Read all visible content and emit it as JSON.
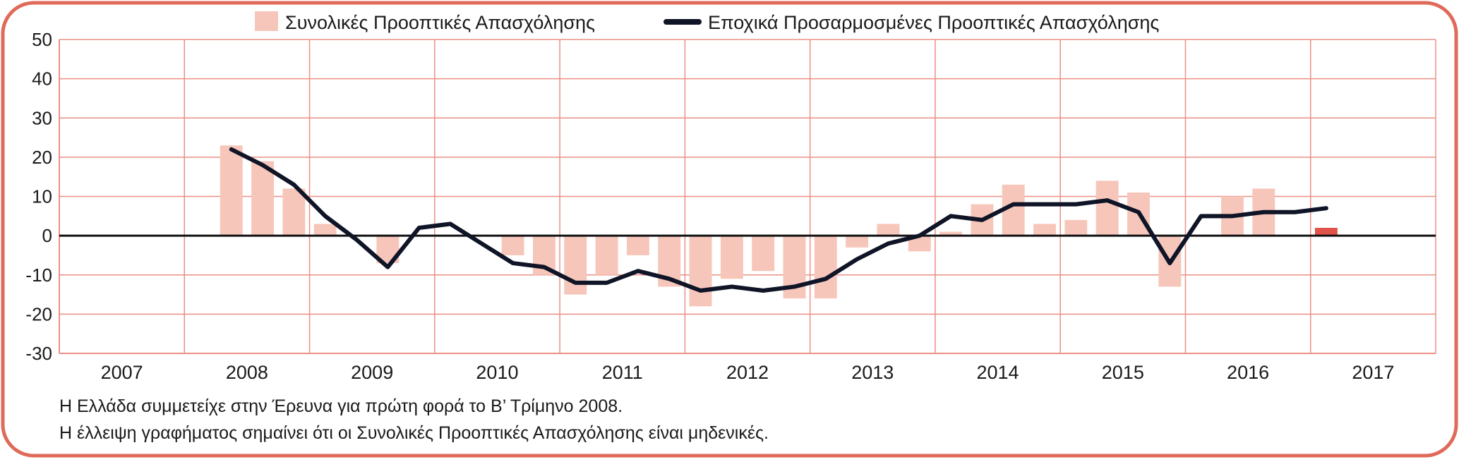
{
  "legend": {
    "bar_label": "Συνολικές Προοπτικές Απασχόλησης",
    "line_label": "Εποχικά Προσαρμοσμένες Προοπτικές Απασχόλησης"
  },
  "notes": [
    "Η Ελλάδα συμμετείχε στην Έρευνα για πρώτη φορά το Β’ Τρίμηνο 2008.",
    "Η έλλειψη γραφήματος σημαίνει ότι οι Συνολικές Προοπτικές Απασχόλησης είναι μηδενικές."
  ],
  "colors": {
    "frame": "#e06a5a",
    "grid": "#eb8f85",
    "bar": "#f7c6bb",
    "bar_latest": "#e0524a",
    "line": "#0f1426",
    "zero_line": "#111111"
  },
  "chart_data": {
    "type": "bar",
    "years": [
      "2007",
      "2008",
      "2009",
      "2010",
      "2011",
      "2012",
      "2013",
      "2014",
      "2015",
      "2016",
      "2017"
    ],
    "ylim": [
      -30,
      50
    ],
    "yticks": [
      50,
      40,
      30,
      20,
      10,
      0,
      -10,
      -20,
      -30
    ],
    "grid": true,
    "legend_position": "top",
    "quarters": [
      "2008 Q2",
      "2008 Q3",
      "2008 Q4",
      "2009 Q1",
      "2009 Q2",
      "2009 Q3",
      "2009 Q4",
      "2010 Q1",
      "2010 Q2",
      "2010 Q3",
      "2010 Q4",
      "2011 Q1",
      "2011 Q2",
      "2011 Q3",
      "2011 Q4",
      "2012 Q1",
      "2012 Q2",
      "2012 Q3",
      "2012 Q4",
      "2013 Q1",
      "2013 Q2",
      "2013 Q3",
      "2013 Q4",
      "2014 Q1",
      "2014 Q2",
      "2014 Q3",
      "2014 Q4",
      "2015 Q1",
      "2015 Q2",
      "2015 Q3",
      "2015 Q4",
      "2016 Q1",
      "2016 Q2",
      "2016 Q3",
      "2016 Q4",
      "2017 Q1"
    ],
    "series": [
      {
        "name": "Συνολικές Προοπτικές Απασχόλησης",
        "kind": "bar",
        "values": [
          23,
          19,
          12,
          3,
          0,
          -7,
          0,
          0,
          0,
          -5,
          -10,
          -15,
          -10,
          -5,
          -13,
          -18,
          -11,
          -9,
          -16,
          -16,
          -3,
          3,
          -4,
          1,
          8,
          13,
          3,
          4,
          14,
          11,
          -13,
          0,
          10,
          12,
          0,
          2
        ]
      },
      {
        "name": "Εποχικά Προσαρμοσμένες Προοπτικές Απασχόλησης",
        "kind": "line",
        "values": [
          22,
          18,
          13,
          5,
          -1,
          -8,
          2,
          3,
          -2,
          -7,
          -8,
          -12,
          -12,
          -9,
          -11,
          -14,
          -13,
          -14,
          -13,
          -11,
          -6,
          -2,
          0,
          5,
          4,
          8,
          8,
          8,
          9,
          6,
          -7,
          5,
          5,
          6,
          6,
          7
        ]
      }
    ]
  }
}
